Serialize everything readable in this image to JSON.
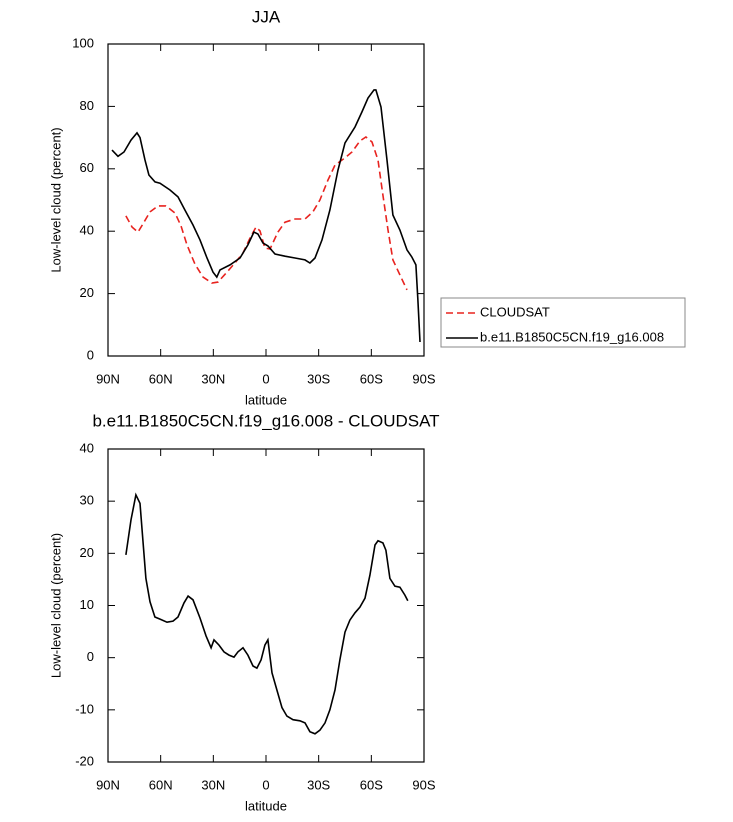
{
  "chart_data": [
    {
      "type": "line",
      "title": "JJA",
      "xlabel": "latitude",
      "ylabel": "Low-level cloud (percent)",
      "xlim": [
        90,
        -90
      ],
      "xticks": [
        {
          "value": 90,
          "label": "90N"
        },
        {
          "value": 60,
          "label": "60N"
        },
        {
          "value": 30,
          "label": "30N"
        },
        0,
        {
          "value": -30,
          "label": "30S"
        },
        {
          "value": -60,
          "label": "60S"
        },
        {
          "value": -90,
          "label": "90S"
        }
      ],
      "ylim": [
        0,
        100
      ],
      "yticks": [
        0,
        20,
        40,
        60,
        80,
        100
      ],
      "legend": "right",
      "series": [
        {
          "name": "CLOUDSAT",
          "color": "#e8231f",
          "dashed": true,
          "x": [
            79.8,
            76.3,
            72.9,
            70.1,
            66.1,
            61.5,
            57,
            51.8,
            48.4,
            45,
            40.5,
            35.9,
            30.8,
            27.4,
            22.2,
            17.7,
            13.1,
            9.1,
            5.7,
            3.4,
            0.6,
            -2.3,
            -6.8,
            -10.8,
            -16.5,
            -22.2,
            -26.7,
            -30.7,
            -35.3,
            -39.3,
            -45,
            -49,
            -53.5,
            -56.9,
            -60.4,
            -63.8,
            -66.6,
            -69.5,
            -72.3,
            -76.3,
            -80.3
          ],
          "values": [
            44.9,
            41.3,
            39.7,
            42.3,
            46.2,
            48.1,
            48.1,
            45.8,
            41.7,
            35.6,
            29.5,
            25.3,
            23.4,
            23.7,
            26.9,
            29.8,
            33,
            37.8,
            41.3,
            40.1,
            34.6,
            34.3,
            39.7,
            42.9,
            43.9,
            43.9,
            46.2,
            50,
            56.4,
            61.2,
            63.5,
            65.4,
            68.9,
            70.2,
            68.6,
            62.8,
            51.6,
            40.4,
            30.8,
            26,
            21.2
          ]
        },
        {
          "name": "b.e11.B1850C5CN.f19_g16.008",
          "color": "#000000",
          "dashed": false,
          "x": [
            87.7,
            84.3,
            80.9,
            76.9,
            73.5,
            71.8,
            68.9,
            66.7,
            63.2,
            60.4,
            54.7,
            50.1,
            46.2,
            41.6,
            37.6,
            33.6,
            30.2,
            28,
            26.2,
            20.5,
            14.8,
            10.3,
            6.9,
            4.6,
            1.7,
            -1.1,
            -5.1,
            -10.8,
            -16.5,
            -22.2,
            -25,
            -27.9,
            -31.9,
            -36.4,
            -41,
            -45,
            -50.7,
            -54.6,
            -58.1,
            -61.5,
            -62.6,
            -65.5,
            -68.9,
            -72.3,
            -76.3,
            -80.3,
            -83.1,
            -85.4,
            -86.5,
            -87.7
          ],
          "values": [
            66,
            64,
            65.4,
            69.2,
            71.5,
            70,
            62.8,
            58,
            55.8,
            55.4,
            53.2,
            51,
            46.8,
            42,
            37.2,
            31.4,
            26.9,
            25.3,
            27.6,
            29.2,
            31.4,
            35.6,
            39.7,
            39.1,
            36.2,
            35.3,
            32.7,
            32,
            31.4,
            30.8,
            29.8,
            31.4,
            37.2,
            46.8,
            59.6,
            68.3,
            73.4,
            78.2,
            82.7,
            85.3,
            85.3,
            79.8,
            62.8,
            45.2,
            40.4,
            34,
            31.7,
            29.2,
            17.9,
            4.5
          ]
        }
      ]
    },
    {
      "type": "line",
      "title": "b.e11.B1850C5CN.f19_g16.008 - CLOUDSAT",
      "xlabel": "latitude",
      "ylabel": "Low-level cloud (percent)",
      "xlim": [
        90,
        -90
      ],
      "xticks": [
        {
          "value": 90,
          "label": "90N"
        },
        {
          "value": 60,
          "label": "60N"
        },
        {
          "value": 30,
          "label": "30N"
        },
        0,
        {
          "value": -30,
          "label": "30S"
        },
        {
          "value": -60,
          "label": "60S"
        },
        {
          "value": -90,
          "label": "90S"
        }
      ],
      "ylim": [
        -20,
        40
      ],
      "yticks": [
        -20,
        -10,
        0,
        10,
        20,
        30,
        40
      ],
      "color": "#000000",
      "x": [
        79.8,
        76.9,
        74.1,
        71.8,
        70.1,
        68.4,
        66.1,
        63.3,
        60.4,
        56.4,
        53,
        50.1,
        46.7,
        44.4,
        41.6,
        37.6,
        34.2,
        31.3,
        29.6,
        26.8,
        23.9,
        21.1,
        18.2,
        16,
        13.1,
        10.3,
        7.4,
        5.2,
        2.8,
        0.6,
        -1.1,
        -3.4,
        -6.2,
        -9.1,
        -11.9,
        -15.4,
        -19.3,
        -22.2,
        -25,
        -27.9,
        -30.7,
        -33.6,
        -36.4,
        -39.3,
        -42.1,
        -45,
        -47.8,
        -50.7,
        -53.5,
        -56.4,
        -59.2,
        -62.1,
        -63.8,
        -66.6,
        -68.3,
        -70.6,
        -73.4,
        -76.3,
        -79.1,
        -80.8
      ],
      "values": [
        19.7,
        26.4,
        31.2,
        29.6,
        22.5,
        15.2,
        10.7,
        7.8,
        7.4,
        6.8,
        7,
        7.8,
        10.5,
        11.8,
        11.1,
        7.6,
        4.2,
        1.9,
        3.4,
        2.4,
        1.1,
        0.5,
        0.1,
        1.1,
        1.9,
        0.5,
        -1.6,
        -2,
        -0.4,
        2.4,
        3.4,
        -2.9,
        -6.2,
        -9.6,
        -11.2,
        -11.9,
        -12.1,
        -12.5,
        -14.2,
        -14.6,
        -13.9,
        -12.5,
        -10,
        -6.2,
        -0.4,
        4.9,
        7.2,
        8.6,
        9.7,
        11.4,
        15.8,
        21.6,
        22.4,
        22,
        20.6,
        15.2,
        13.7,
        13.5,
        12,
        10.9
      ]
    }
  ]
}
